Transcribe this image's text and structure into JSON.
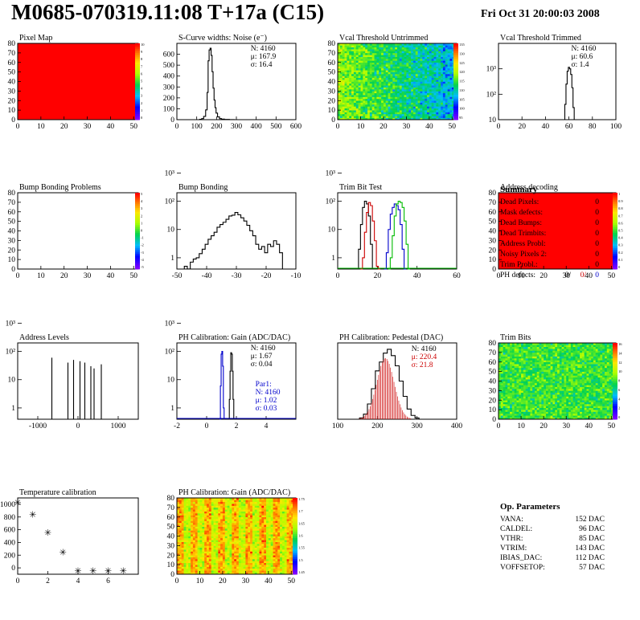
{
  "header": {
    "title": "M0685-070319.11:08 T+17a (C15)",
    "date": "Fri Oct 31 20:00:03 2008"
  },
  "colors": {
    "map_red": "#ff0000",
    "hist_line": "#000000",
    "hist_red": "#cc0000",
    "hist_blue": "#0000cc",
    "hist_green": "#00bb00",
    "fit_line": "#0000cc",
    "stat_red": "#cc0000",
    "stat_blue": "#0000cc"
  },
  "chart_data": [
    {
      "id": "pixel_map",
      "type": "heatmap",
      "title": "Pixel Map",
      "xlim": [
        0,
        52
      ],
      "ylim": [
        0,
        80
      ],
      "xticks": [
        0,
        10,
        20,
        30,
        40,
        50
      ],
      "yticks": [
        0,
        10,
        20,
        30,
        40,
        50,
        60,
        70,
        80
      ],
      "fill": "uniform-red",
      "palette": "rainbow",
      "palette_ticks": [
        "10",
        "9",
        "8",
        "7",
        "6",
        "5",
        "4",
        "3",
        "2",
        "1",
        "0"
      ]
    },
    {
      "id": "scurve",
      "type": "histogram",
      "title": "S-Curve widths: Noise (e⁻)",
      "xlim": [
        0,
        600
      ],
      "ylim": [
        0,
        700
      ],
      "xticks": [
        0,
        100,
        200,
        300,
        400,
        500,
        600
      ],
      "yticks": [
        0,
        100,
        200,
        300,
        400,
        500,
        600
      ],
      "stats": [
        {
          "label": "N: 4160"
        },
        {
          "label": "μ: 167.9"
        },
        {
          "label": "σ: 16.4"
        }
      ],
      "series": [
        {
          "color": "black",
          "x": [
            110,
            120,
            130,
            140,
            150,
            155,
            160,
            165,
            170,
            175,
            180,
            185,
            190,
            195,
            200,
            210,
            220,
            230,
            250,
            280,
            300
          ],
          "y": [
            0,
            3,
            10,
            30,
            90,
            250,
            540,
            640,
            655,
            590,
            440,
            290,
            180,
            110,
            60,
            25,
            10,
            5,
            2,
            1,
            0
          ]
        }
      ]
    },
    {
      "id": "vcal_untrimmed",
      "type": "heatmap",
      "title": "Vcal Threshold Untrimmed",
      "xlim": [
        0,
        52
      ],
      "ylim": [
        0,
        80
      ],
      "xticks": [
        0,
        10,
        20,
        30,
        40,
        50
      ],
      "yticks": [
        0,
        10,
        20,
        30,
        40,
        50,
        60,
        70,
        80
      ],
      "palette": "rainbow",
      "palette_ticks": [
        "135",
        "130",
        "125",
        "120",
        "115",
        "110",
        "105",
        "100",
        "95"
      ]
    },
    {
      "id": "vcal_trimmed",
      "type": "histogram",
      "title": "Vcal Threshold Trimmed",
      "xlim": [
        0,
        100
      ],
      "ylog": true,
      "ydecades": [
        1,
        4
      ],
      "xticks": [
        0,
        20,
        40,
        60,
        80,
        100
      ],
      "ytick_labels": [
        "10",
        "10²",
        "10³"
      ],
      "stats": [
        {
          "label": "N: 4160"
        },
        {
          "label": "μ: 60.6"
        },
        {
          "label": "σ:  1.4"
        }
      ],
      "series": [
        {
          "color": "black",
          "x": [
            56,
            57,
            58,
            59,
            60,
            61,
            62,
            63,
            64,
            65
          ],
          "y": [
            5,
            40,
            250,
            800,
            1150,
            1000,
            600,
            180,
            30,
            3
          ]
        }
      ]
    },
    {
      "id": "bump_problems",
      "type": "heatmap",
      "title": "Bump Bonding Problems",
      "xlim": [
        0,
        52
      ],
      "ylim": [
        0,
        80
      ],
      "xticks": [
        0,
        10,
        20,
        30,
        40,
        50
      ],
      "yticks": [
        0,
        10,
        20,
        30,
        40,
        50,
        60,
        70,
        80
      ],
      "fill": "empty",
      "palette": "rainbow",
      "palette_ticks": [
        "5",
        "4",
        "3",
        "2",
        "1",
        "0",
        "-1",
        "-2",
        "-3",
        "-4",
        "-5"
      ]
    },
    {
      "id": "bump_bonding",
      "type": "histogram",
      "title": "Bump Bonding",
      "xlim": [
        -50,
        -10
      ],
      "ylog": true,
      "ydecades": [
        0.6,
        3.3
      ],
      "xticks": [
        -50,
        -40,
        -30,
        -20,
        -10
      ],
      "ytick_labels": [
        "1",
        "10",
        "10²",
        "10³"
      ],
      "series": [
        {
          "color": "black",
          "x": [
            -49,
            -48,
            -47,
            -46,
            -45,
            -44,
            -43,
            -42,
            -41,
            -40,
            -39,
            -38,
            -37,
            -36,
            -35,
            -34,
            -33,
            -32,
            -31,
            -30,
            -29,
            -28,
            -27,
            -26,
            -25,
            -24,
            -23,
            -22,
            -21,
            -20,
            -19,
            -18,
            -17,
            -16,
            -15,
            -14,
            -13
          ],
          "y": [
            2,
            3,
            5,
            4,
            7,
            9,
            10,
            14,
            20,
            30,
            45,
            60,
            80,
            120,
            150,
            180,
            230,
            300,
            320,
            400,
            330,
            260,
            200,
            140,
            90,
            60,
            30,
            20,
            25,
            15,
            30,
            25,
            40,
            30,
            15,
            3,
            1
          ]
        }
      ]
    },
    {
      "id": "trim_bit_test",
      "type": "histogram",
      "title": "Trim Bit Test",
      "xlim": [
        0,
        60
      ],
      "ylog": true,
      "ydecades": [
        0.6,
        3.3
      ],
      "xticks": [
        0,
        20,
        40,
        60
      ],
      "ytick_labels": [
        "1",
        "10",
        "10²",
        "10³"
      ],
      "series": [
        {
          "color": "black",
          "x": [
            10,
            11,
            12,
            13,
            14,
            15,
            16,
            17,
            18
          ],
          "y": [
            2,
            20,
            150,
            600,
            1000,
            800,
            300,
            30,
            2
          ]
        },
        {
          "color": "red",
          "x": [
            12,
            13,
            14,
            15,
            16,
            17,
            18,
            19,
            20,
            21
          ],
          "y": [
            2,
            10,
            80,
            400,
            900,
            700,
            200,
            40,
            5,
            1
          ]
        },
        {
          "color": "blue",
          "x": [
            24,
            25,
            26,
            27,
            28,
            29,
            30,
            31,
            32,
            33,
            34
          ],
          "y": [
            2,
            15,
            100,
            350,
            600,
            800,
            700,
            500,
            150,
            20,
            2
          ]
        },
        {
          "color": "green",
          "x": [
            26,
            27,
            28,
            29,
            30,
            31,
            32,
            33,
            34,
            35,
            36
          ],
          "y": [
            2,
            10,
            60,
            300,
            800,
            1000,
            900,
            600,
            200,
            30,
            2
          ]
        }
      ]
    },
    {
      "id": "address_decoding",
      "type": "heatmap",
      "title": "Address decoding",
      "xlim": [
        0,
        52
      ],
      "ylim": [
        0,
        80
      ],
      "xticks": [
        0,
        10,
        20,
        30,
        40,
        50
      ],
      "yticks": [
        0,
        10,
        20,
        30,
        40,
        50,
        60,
        70,
        80
      ],
      "fill": "uniform-red",
      "palette": "rainbow",
      "palette_ticks": [
        "1",
        "0.9",
        "0.8",
        "0.7",
        "0.6",
        "0.5",
        "0.4",
        "0.3",
        "0.2",
        "0.1",
        "0"
      ]
    },
    {
      "id": "address_levels",
      "type": "histogram",
      "title": "Address Levels",
      "xlim": [
        -1500,
        1500
      ],
      "ylog": true,
      "ydecades": [
        0.6,
        3.3
      ],
      "xticks": [
        -1000,
        0,
        1000
      ],
      "ytick_labels": [
        "1",
        "10",
        "10²",
        "10³"
      ],
      "series": [
        {
          "color": "black",
          "x": [
            -650,
            -250,
            -110,
            50,
            170,
            320,
            400,
            580
          ],
          "y": [
            600,
            400,
            500,
            450,
            400,
            300,
            250,
            350
          ]
        }
      ]
    },
    {
      "id": "ph_gain",
      "type": "histogram",
      "title": "PH Calibration: Gain (ADC/DAC)",
      "xlim": [
        -2,
        6
      ],
      "ylog": true,
      "ydecades": [
        0.6,
        3.3
      ],
      "xticks": [
        -2,
        0,
        2,
        4
      ],
      "ytick_labels": [
        "1",
        "10",
        "10²",
        "10³"
      ],
      "stats": [
        {
          "label": "N: 4160"
        },
        {
          "label": "μ: 1.67"
        },
        {
          "label": "σ: 0.04"
        }
      ],
      "fit_stats": [
        {
          "label": "Par1:"
        },
        {
          "label": "N: 4160"
        },
        {
          "label": "μ: 1.02"
        },
        {
          "label": "σ: 0.03"
        }
      ],
      "series": [
        {
          "color": "black",
          "x": [
            1.5,
            1.55,
            1.6,
            1.65,
            1.7,
            1.75,
            1.8,
            1.85
          ],
          "y": [
            2,
            20,
            200,
            900,
            800,
            200,
            20,
            2
          ]
        },
        {
          "color": "blue",
          "x": [
            0.9,
            0.95,
            1.0,
            1.05,
            1.1,
            1.15
          ],
          "y": [
            3,
            60,
            800,
            1000,
            300,
            10
          ]
        }
      ]
    },
    {
      "id": "ph_pedestal",
      "type": "histogram",
      "title": "PH Calibration: Pedestal (DAC)",
      "xlim": [
        100,
        400
      ],
      "ylim": [
        0,
        60
      ],
      "xticks": [
        100,
        200,
        300,
        400
      ],
      "stats": [
        {
          "label": "N: 4160"
        },
        {
          "label": "μ: 220.4"
        },
        {
          "label": "σ: 21.8"
        }
      ],
      "series": [
        {
          "color": "black",
          "x": [
            160,
            170,
            180,
            190,
            200,
            210,
            220,
            230,
            240,
            250,
            260,
            270,
            280,
            290,
            300
          ],
          "y": [
            1,
            4,
            12,
            24,
            38,
            45,
            52,
            55,
            50,
            42,
            30,
            18,
            8,
            3,
            1
          ]
        },
        {
          "color": "red",
          "fit": "gaussian",
          "mean": 220.4,
          "sigma": 21.8,
          "peak": 48
        }
      ]
    },
    {
      "id": "trim_bits",
      "type": "heatmap",
      "title": "Trim Bits",
      "xlim": [
        0,
        52
      ],
      "ylim": [
        0,
        80
      ],
      "xticks": [
        0,
        10,
        20,
        30,
        40,
        50
      ],
      "yticks": [
        0,
        10,
        20,
        30,
        40,
        50,
        60,
        70,
        80
      ],
      "palette": "rainbow",
      "palette_ticks": [
        "16",
        "14",
        "12",
        "10",
        "8",
        "6",
        "4",
        "2",
        "0"
      ]
    },
    {
      "id": "temperature",
      "type": "scatter",
      "title": "Temperature calibration",
      "xlim": [
        0,
        8
      ],
      "ylim": [
        -100,
        1100
      ],
      "xticks": [
        0,
        2,
        4,
        6
      ],
      "yticks": [
        0,
        200,
        400,
        600,
        800,
        1000
      ],
      "x": [
        0,
        1,
        2,
        3,
        4,
        5,
        6,
        7
      ],
      "y": [
        1030,
        840,
        560,
        250,
        -40,
        -40,
        -40,
        -40
      ]
    },
    {
      "id": "ph_gain_map",
      "type": "heatmap",
      "title": "PH Calibration: Gain (ADC/DAC)",
      "xlim": [
        0,
        52
      ],
      "ylim": [
        0,
        80
      ],
      "xticks": [
        0,
        10,
        20,
        30,
        40,
        50
      ],
      "yticks": [
        0,
        10,
        20,
        30,
        40,
        50,
        60,
        70,
        80
      ],
      "palette": "rainbow",
      "palette_ticks": [
        "1.75",
        "1.7",
        "1.65",
        "1.6",
        "1.55",
        "1.5",
        "1.45"
      ]
    }
  ],
  "summary": {
    "title": "Summary",
    "rows": [
      {
        "label": "Dead Pixels:",
        "value": "0"
      },
      {
        "label": "Mask defects:",
        "value": "0"
      },
      {
        "label": "Dead Bumps:",
        "value": "0"
      },
      {
        "label": "Dead Trimbits:",
        "value": "0"
      },
      {
        "label": "Address Probl:",
        "value": "0"
      },
      {
        "label": "Noisy Pixels 2:",
        "value": "0"
      },
      {
        "label": "Trim Probl.:",
        "value": "0"
      }
    ],
    "ph_defects": {
      "label": "PH defects:",
      "v1": "0/",
      "v2": "0/",
      "v3": "0"
    }
  },
  "op_params": {
    "title": "Op. Parameters",
    "rows": [
      {
        "label": "VANA:",
        "value": "152 DAC"
      },
      {
        "label": "CALDEL:",
        "value": "96 DAC"
      },
      {
        "label": "VTHR:",
        "value": "85 DAC"
      },
      {
        "label": "VTRIM:",
        "value": "143 DAC"
      },
      {
        "label": "IBIAS_DAC:",
        "value": "112 DAC"
      },
      {
        "label": "VOFFSETOP:",
        "value": "57 DAC"
      }
    ]
  }
}
